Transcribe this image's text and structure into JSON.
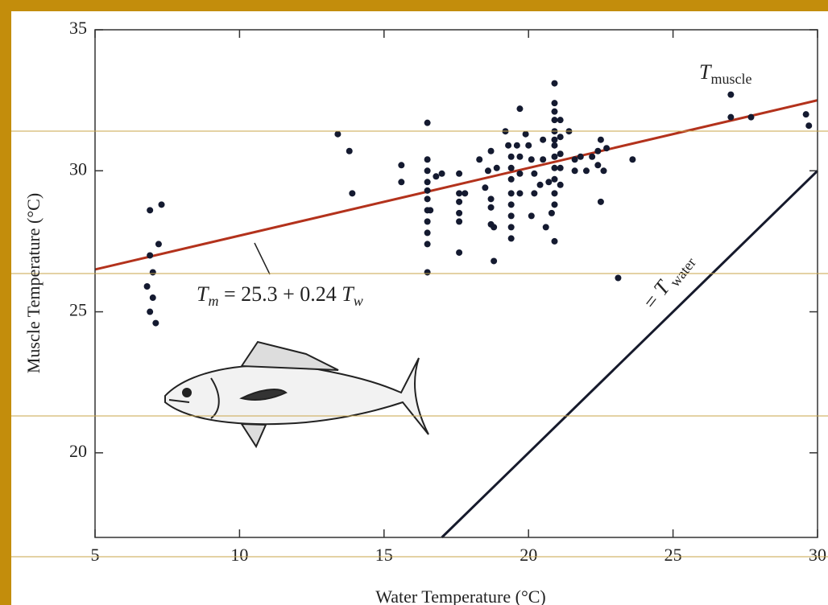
{
  "chart_data": {
    "type": "scatter",
    "x_label": "Water Temperature (°C)",
    "y_label": "Muscle Temperature (°C)",
    "xlim": [
      5,
      30
    ],
    "ylim": [
      17,
      35
    ],
    "xticks": [
      5,
      10,
      15,
      20,
      25,
      30
    ],
    "yticks": [
      20,
      25,
      30,
      35
    ],
    "color": "#141a30",
    "x": [
      6.8,
      6.9,
      6.9,
      6.9,
      7.0,
      7.0,
      7.1,
      7.2,
      7.3,
      13.4,
      13.8,
      13.9,
      15.6,
      15.6,
      16.5,
      16.5,
      16.5,
      16.5,
      16.5,
      16.5,
      16.5,
      16.5,
      16.5,
      16.5,
      16.5,
      16.6,
      16.8,
      17.0,
      17.6,
      17.6,
      17.6,
      17.6,
      17.6,
      17.6,
      17.8,
      18.3,
      18.5,
      18.6,
      18.7,
      18.7,
      18.7,
      18.7,
      18.8,
      18.8,
      18.9,
      19.2,
      19.3,
      19.4,
      19.4,
      19.4,
      19.4,
      19.4,
      19.4,
      19.4,
      19.4,
      19.7,
      19.6,
      19.7,
      19.7,
      19.7,
      19.9,
      20.0,
      20.1,
      20.1,
      20.2,
      20.2,
      20.4,
      20.5,
      20.5,
      20.6,
      20.7,
      20.9,
      20.9,
      20.9,
      20.9,
      20.9,
      20.9,
      20.9,
      20.9,
      20.9,
      20.9,
      20.9,
      20.9,
      20.9,
      20.8,
      21.1,
      21.1,
      21.1,
      21.1,
      21.1,
      21.4,
      21.6,
      21.6,
      21.8,
      22.0,
      22.2,
      22.4,
      22.4,
      22.5,
      22.5,
      22.6,
      22.7,
      23.1,
      23.6,
      27.0,
      27.0,
      27.7,
      29.6,
      29.7
    ],
    "y": [
      25.9,
      28.6,
      27.0,
      25.0,
      26.4,
      25.5,
      24.6,
      27.4,
      28.8,
      31.3,
      30.7,
      29.2,
      30.2,
      29.6,
      31.7,
      30.4,
      30.0,
      29.6,
      29.3,
      29.0,
      28.6,
      28.2,
      27.8,
      27.4,
      26.4,
      28.6,
      29.8,
      29.9,
      29.9,
      29.2,
      28.9,
      28.5,
      28.2,
      27.1,
      29.2,
      30.4,
      29.4,
      30.0,
      30.7,
      29.0,
      28.7,
      28.1,
      26.8,
      28.0,
      30.1,
      31.4,
      30.9,
      30.5,
      30.1,
      29.7,
      29.2,
      28.8,
      28.4,
      28.0,
      27.6,
      32.2,
      30.9,
      30.5,
      29.9,
      29.2,
      31.3,
      30.9,
      30.4,
      28.4,
      29.2,
      29.9,
      29.5,
      31.1,
      30.4,
      28.0,
      29.6,
      33.1,
      32.4,
      32.1,
      31.8,
      31.4,
      31.1,
      30.9,
      30.5,
      30.1,
      29.7,
      29.2,
      28.8,
      27.5,
      28.5,
      31.8,
      31.2,
      30.6,
      30.1,
      29.5,
      31.4,
      30.4,
      30.0,
      30.5,
      30.0,
      30.5,
      30.2,
      30.7,
      28.9,
      31.1,
      30.0,
      30.8,
      26.2,
      30.4,
      32.7,
      31.9,
      31.9,
      32.0,
      31.6
    ],
    "lines": [
      {
        "color": "#b3321c",
        "x": [
          5,
          30
        ],
        "y": [
          26.5,
          32.5
        ]
      },
      {
        "color": "#161a2c",
        "x": [
          17,
          30
        ],
        "y": [
          17,
          30
        ]
      }
    ],
    "annotations": [
      {
        "parts": [
          {
            "text": "T",
            "italic": true
          },
          {
            "text": "muscle",
            "sub": true
          }
        ]
      },
      {
        "parts": [
          {
            "text": "T",
            "italic": true
          },
          {
            "text": "m",
            "italic": true,
            "sub": true
          },
          {
            "text": " = 25.3 + 0.24 "
          },
          {
            "text": "T",
            "italic": true
          },
          {
            "text": "w",
            "italic": true,
            "sub": true
          }
        ]
      },
      {
        "parts": [
          {
            "text": "= "
          },
          {
            "text": "T",
            "italic": true
          },
          {
            "text": " water",
            "sub": true
          }
        ]
      }
    ]
  }
}
